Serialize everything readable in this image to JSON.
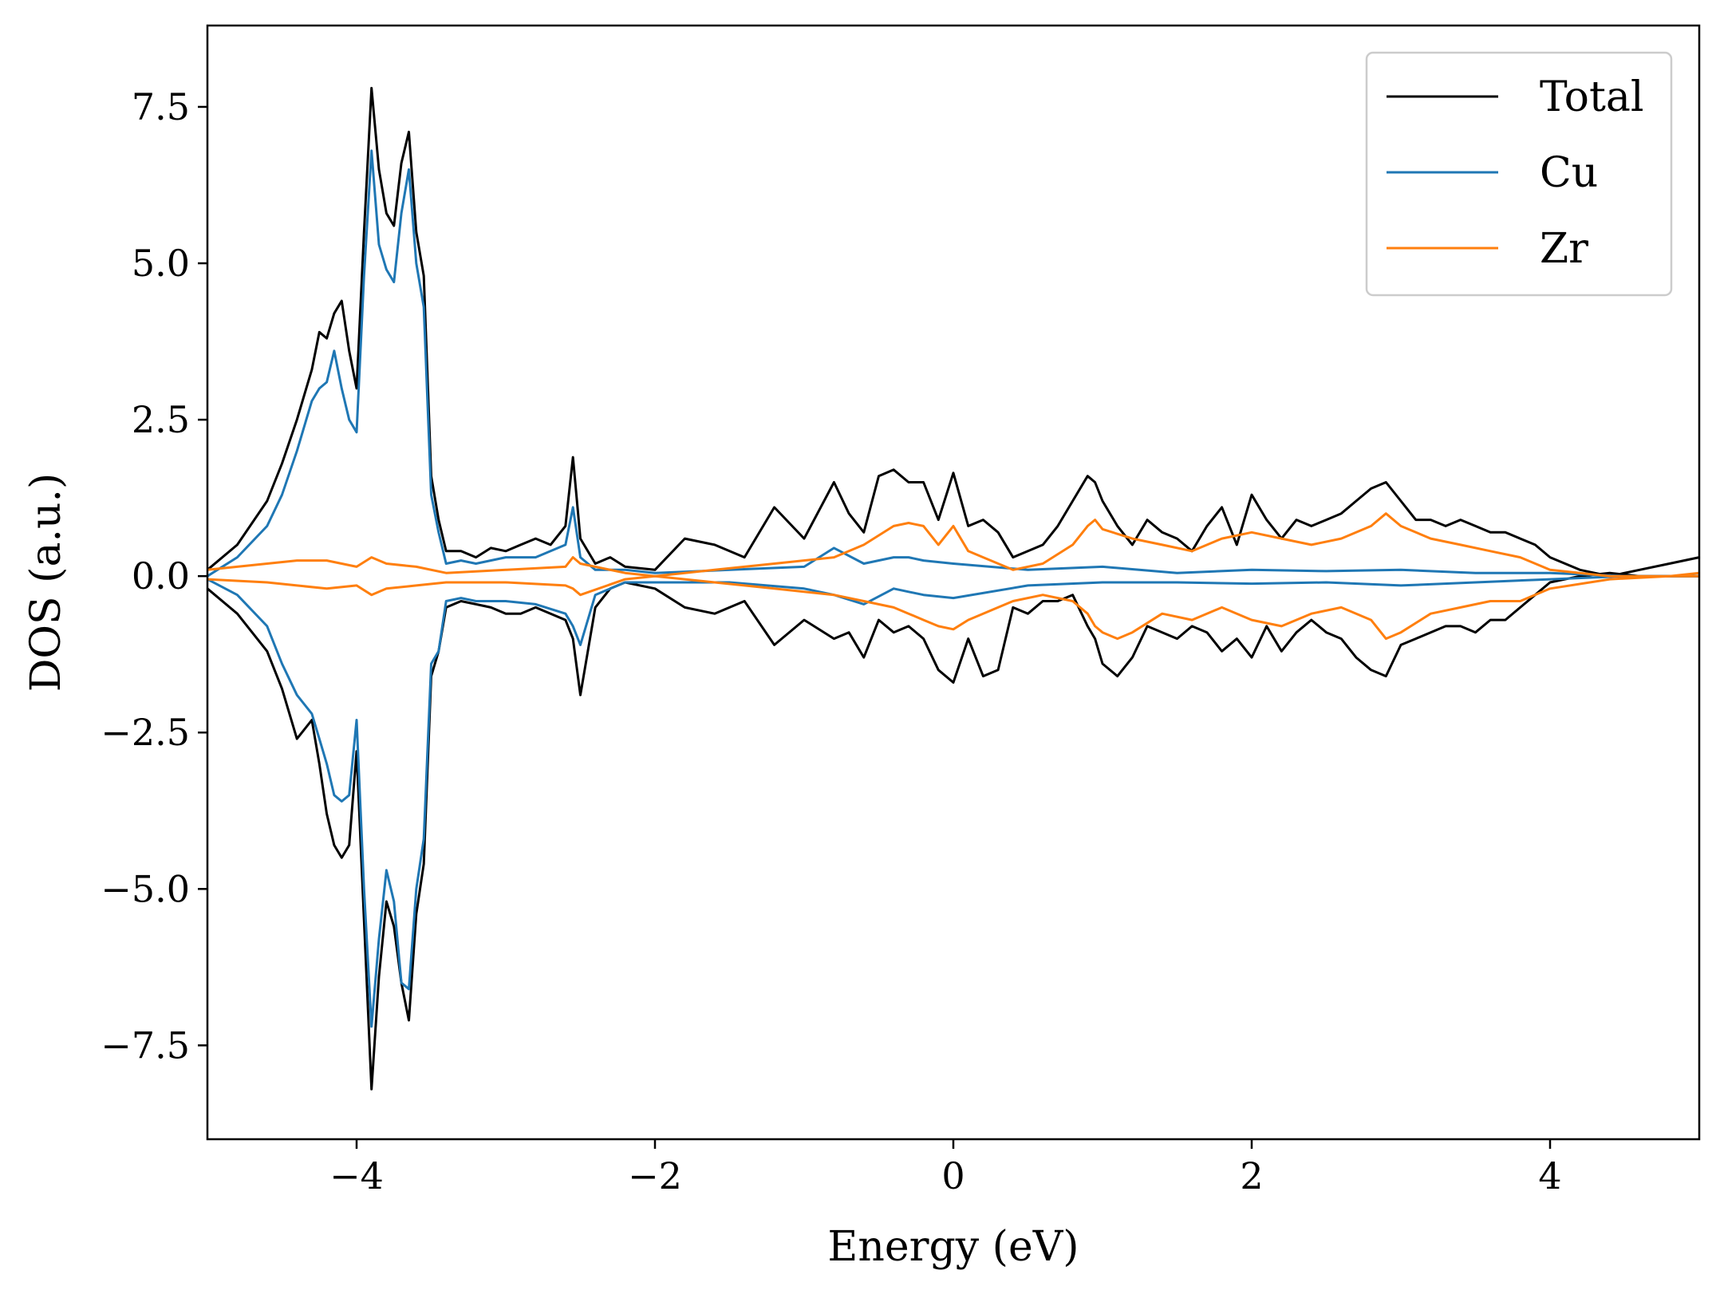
{
  "chart_data": {
    "type": "line",
    "xlabel": "Energy (eV)",
    "ylabel": "DOS (a.u.)",
    "xlim": [
      -5,
      5
    ],
    "ylim": [
      -9.0,
      8.8
    ],
    "xticks": [
      -4,
      -2,
      0,
      2,
      4
    ],
    "xtick_labels": [
      "−4",
      "−2",
      "0",
      "2",
      "4"
    ],
    "yticks": [
      7.5,
      5.0,
      2.5,
      0.0,
      -2.5,
      -5.0,
      -7.5
    ],
    "ytick_labels": [
      "7.5",
      "5.0",
      "2.5",
      "0.0",
      "−2.5",
      "−5.0",
      "−7.5"
    ],
    "grid": false,
    "legend_position": "top-right",
    "series": [
      {
        "name": "Total",
        "color": "#000000",
        "spin_up": {
          "x": [
            -5.0,
            -4.8,
            -4.6,
            -4.5,
            -4.4,
            -4.3,
            -4.25,
            -4.2,
            -4.15,
            -4.1,
            -4.05,
            -4.0,
            -3.95,
            -3.9,
            -3.85,
            -3.8,
            -3.75,
            -3.7,
            -3.65,
            -3.6,
            -3.55,
            -3.5,
            -3.45,
            -3.4,
            -3.3,
            -3.2,
            -3.1,
            -3.0,
            -2.9,
            -2.8,
            -2.7,
            -2.6,
            -2.55,
            -2.5,
            -2.4,
            -2.3,
            -2.2,
            -2.0,
            -1.8,
            -1.6,
            -1.4,
            -1.2,
            -1.0,
            -0.8,
            -0.7,
            -0.6,
            -0.5,
            -0.4,
            -0.3,
            -0.2,
            -0.1,
            0.0,
            0.1,
            0.2,
            0.3,
            0.4,
            0.5,
            0.6,
            0.7,
            0.8,
            0.9,
            0.95,
            1.0,
            1.1,
            1.2,
            1.3,
            1.4,
            1.5,
            1.6,
            1.7,
            1.8,
            1.9,
            2.0,
            2.1,
            2.2,
            2.3,
            2.4,
            2.5,
            2.6,
            2.7,
            2.8,
            2.9,
            3.0,
            3.1,
            3.2,
            3.3,
            3.4,
            3.5,
            3.6,
            3.7,
            3.8,
            3.9,
            4.0,
            4.2,
            4.4,
            4.6,
            4.8,
            5.0
          ],
          "y": [
            0.1,
            0.5,
            1.2,
            1.8,
            2.5,
            3.3,
            3.9,
            3.8,
            4.2,
            4.4,
            3.6,
            3.0,
            5.5,
            7.8,
            6.5,
            5.8,
            5.6,
            6.6,
            7.1,
            5.5,
            4.8,
            1.6,
            0.9,
            0.4,
            0.4,
            0.3,
            0.45,
            0.4,
            0.5,
            0.6,
            0.5,
            0.8,
            1.9,
            0.6,
            0.2,
            0.3,
            0.15,
            0.1,
            0.6,
            0.5,
            0.3,
            1.1,
            0.6,
            1.5,
            1.0,
            0.7,
            1.6,
            1.7,
            1.5,
            1.5,
            0.9,
            1.65,
            0.8,
            0.9,
            0.7,
            0.3,
            0.4,
            0.5,
            0.8,
            1.2,
            1.6,
            1.5,
            1.2,
            0.8,
            0.5,
            0.9,
            0.7,
            0.6,
            0.4,
            0.8,
            1.1,
            0.5,
            1.3,
            0.9,
            0.6,
            0.9,
            0.8,
            0.9,
            1.0,
            1.2,
            1.4,
            1.5,
            1.2,
            0.9,
            0.9,
            0.8,
            0.9,
            0.8,
            0.7,
            0.7,
            0.6,
            0.5,
            0.3,
            0.1,
            0.0,
            0.1,
            0.2,
            0.3
          ]
        },
        "spin_down": {
          "x": [
            -5.0,
            -4.8,
            -4.6,
            -4.5,
            -4.4,
            -4.3,
            -4.25,
            -4.2,
            -4.15,
            -4.1,
            -4.05,
            -4.0,
            -3.95,
            -3.9,
            -3.85,
            -3.8,
            -3.75,
            -3.7,
            -3.65,
            -3.6,
            -3.55,
            -3.5,
            -3.45,
            -3.4,
            -3.3,
            -3.2,
            -3.1,
            -3.0,
            -2.9,
            -2.8,
            -2.7,
            -2.6,
            -2.55,
            -2.5,
            -2.4,
            -2.3,
            -2.2,
            -2.0,
            -1.8,
            -1.6,
            -1.4,
            -1.2,
            -1.0,
            -0.8,
            -0.7,
            -0.6,
            -0.5,
            -0.4,
            -0.3,
            -0.2,
            -0.1,
            0.0,
            0.1,
            0.2,
            0.3,
            0.4,
            0.5,
            0.6,
            0.7,
            0.8,
            0.9,
            0.95,
            1.0,
            1.1,
            1.2,
            1.3,
            1.4,
            1.5,
            1.6,
            1.7,
            1.8,
            1.9,
            2.0,
            2.1,
            2.2,
            2.3,
            2.4,
            2.5,
            2.6,
            2.7,
            2.8,
            2.9,
            3.0,
            3.1,
            3.2,
            3.3,
            3.4,
            3.5,
            3.6,
            3.7,
            3.8,
            3.9,
            4.0,
            4.2,
            4.4,
            4.6,
            4.8,
            5.0
          ],
          "y": [
            -0.2,
            -0.6,
            -1.2,
            -1.8,
            -2.6,
            -2.3,
            -3.0,
            -3.8,
            -4.3,
            -4.5,
            -4.3,
            -2.8,
            -5.5,
            -8.2,
            -6.4,
            -5.2,
            -5.6,
            -6.5,
            -7.1,
            -5.4,
            -4.6,
            -1.6,
            -1.2,
            -0.5,
            -0.4,
            -0.45,
            -0.5,
            -0.6,
            -0.6,
            -0.5,
            -0.6,
            -0.7,
            -1.0,
            -1.9,
            -0.5,
            -0.2,
            -0.1,
            -0.2,
            -0.5,
            -0.6,
            -0.4,
            -1.1,
            -0.7,
            -1.0,
            -0.9,
            -1.3,
            -0.7,
            -0.9,
            -0.8,
            -1.0,
            -1.5,
            -1.7,
            -1.0,
            -1.6,
            -1.5,
            -0.5,
            -0.6,
            -0.4,
            -0.4,
            -0.3,
            -0.8,
            -1.0,
            -1.4,
            -1.6,
            -1.3,
            -0.8,
            -0.9,
            -1.0,
            -0.8,
            -0.9,
            -1.2,
            -1.0,
            -1.3,
            -0.8,
            -1.2,
            -0.9,
            -0.7,
            -0.9,
            -1.0,
            -1.3,
            -1.5,
            -1.6,
            -1.1,
            -1.0,
            -0.9,
            -0.8,
            -0.8,
            -0.9,
            -0.7,
            -0.7,
            -0.5,
            -0.3,
            -0.1,
            0.0,
            0.05,
            0.0,
            0.0,
            0.0
          ]
        }
      },
      {
        "name": "Cu",
        "color": "#1f77b4",
        "spin_up": {
          "x": [
            -5.0,
            -4.8,
            -4.6,
            -4.5,
            -4.4,
            -4.3,
            -4.25,
            -4.2,
            -4.15,
            -4.1,
            -4.05,
            -4.0,
            -3.95,
            -3.9,
            -3.85,
            -3.8,
            -3.75,
            -3.7,
            -3.65,
            -3.6,
            -3.55,
            -3.5,
            -3.45,
            -3.4,
            -3.3,
            -3.2,
            -3.0,
            -2.8,
            -2.6,
            -2.55,
            -2.5,
            -2.4,
            -2.2,
            -2.0,
            -1.5,
            -1.0,
            -0.8,
            -0.6,
            -0.4,
            -0.3,
            -0.2,
            0.0,
            0.5,
            1.0,
            1.5,
            2.0,
            2.5,
            3.0,
            3.5,
            4.0,
            4.5,
            5.0
          ],
          "y": [
            0.0,
            0.3,
            0.8,
            1.3,
            2.0,
            2.8,
            3.0,
            3.1,
            3.6,
            3.0,
            2.5,
            2.3,
            4.8,
            6.8,
            5.3,
            4.9,
            4.7,
            5.8,
            6.5,
            5.0,
            4.3,
            1.3,
            0.7,
            0.2,
            0.25,
            0.2,
            0.3,
            0.3,
            0.5,
            1.1,
            0.3,
            0.1,
            0.1,
            0.05,
            0.1,
            0.15,
            0.45,
            0.2,
            0.3,
            0.3,
            0.25,
            0.2,
            0.1,
            0.15,
            0.05,
            0.1,
            0.08,
            0.1,
            0.05,
            0.05,
            0.0,
            0.0
          ]
        },
        "spin_down": {
          "x": [
            -5.0,
            -4.8,
            -4.6,
            -4.5,
            -4.4,
            -4.3,
            -4.25,
            -4.2,
            -4.15,
            -4.1,
            -4.05,
            -4.0,
            -3.95,
            -3.9,
            -3.85,
            -3.8,
            -3.75,
            -3.7,
            -3.65,
            -3.6,
            -3.55,
            -3.5,
            -3.45,
            -3.4,
            -3.3,
            -3.2,
            -3.0,
            -2.8,
            -2.6,
            -2.55,
            -2.5,
            -2.4,
            -2.2,
            -2.0,
            -1.5,
            -1.0,
            -0.8,
            -0.6,
            -0.4,
            -0.3,
            -0.2,
            0.0,
            0.5,
            1.0,
            1.5,
            2.0,
            2.5,
            3.0,
            3.5,
            4.0,
            4.5,
            5.0
          ],
          "y": [
            -0.05,
            -0.3,
            -0.8,
            -1.4,
            -1.9,
            -2.2,
            -2.6,
            -3.0,
            -3.5,
            -3.6,
            -3.5,
            -2.3,
            -5.0,
            -7.2,
            -5.8,
            -4.7,
            -5.2,
            -6.5,
            -6.6,
            -5.0,
            -4.2,
            -1.4,
            -1.2,
            -0.4,
            -0.35,
            -0.4,
            -0.4,
            -0.45,
            -0.6,
            -0.8,
            -1.1,
            -0.3,
            -0.1,
            -0.1,
            -0.1,
            -0.2,
            -0.3,
            -0.45,
            -0.2,
            -0.25,
            -0.3,
            -0.35,
            -0.15,
            -0.1,
            -0.1,
            -0.12,
            -0.1,
            -0.15,
            -0.1,
            -0.05,
            0.0,
            0.0
          ]
        }
      },
      {
        "name": "Zr",
        "color": "#ff7f0e",
        "spin_up": {
          "x": [
            -5.0,
            -4.6,
            -4.4,
            -4.2,
            -4.0,
            -3.9,
            -3.8,
            -3.6,
            -3.4,
            -3.0,
            -2.6,
            -2.55,
            -2.5,
            -2.2,
            -2.0,
            -1.6,
            -1.2,
            -0.8,
            -0.6,
            -0.4,
            -0.3,
            -0.2,
            -0.1,
            0.0,
            0.1,
            0.2,
            0.4,
            0.6,
            0.8,
            0.9,
            0.95,
            1.0,
            1.2,
            1.4,
            1.6,
            1.8,
            2.0,
            2.2,
            2.4,
            2.6,
            2.8,
            2.9,
            3.0,
            3.2,
            3.4,
            3.6,
            3.8,
            4.0,
            4.4,
            4.8,
            5.0
          ],
          "y": [
            0.1,
            0.2,
            0.25,
            0.25,
            0.15,
            0.3,
            0.2,
            0.15,
            0.05,
            0.1,
            0.15,
            0.3,
            0.2,
            0.05,
            0.0,
            0.1,
            0.2,
            0.3,
            0.5,
            0.8,
            0.85,
            0.8,
            0.5,
            0.8,
            0.4,
            0.3,
            0.1,
            0.2,
            0.5,
            0.8,
            0.9,
            0.75,
            0.6,
            0.5,
            0.4,
            0.6,
            0.7,
            0.6,
            0.5,
            0.6,
            0.8,
            1.0,
            0.8,
            0.6,
            0.5,
            0.4,
            0.3,
            0.1,
            0.0,
            0.0,
            0.05
          ]
        },
        "spin_down": {
          "x": [
            -5.0,
            -4.6,
            -4.4,
            -4.2,
            -4.0,
            -3.9,
            -3.8,
            -3.6,
            -3.4,
            -3.0,
            -2.6,
            -2.55,
            -2.5,
            -2.2,
            -2.0,
            -1.6,
            -1.2,
            -0.8,
            -0.6,
            -0.4,
            -0.3,
            -0.2,
            -0.1,
            0.0,
            0.1,
            0.2,
            0.4,
            0.6,
            0.8,
            0.9,
            0.95,
            1.0,
            1.1,
            1.2,
            1.4,
            1.6,
            1.8,
            2.0,
            2.2,
            2.4,
            2.6,
            2.8,
            2.9,
            3.0,
            3.2,
            3.4,
            3.6,
            3.8,
            4.0,
            4.4,
            4.8,
            5.0
          ],
          "y": [
            -0.05,
            -0.1,
            -0.15,
            -0.2,
            -0.15,
            -0.3,
            -0.2,
            -0.15,
            -0.1,
            -0.1,
            -0.15,
            -0.2,
            -0.3,
            -0.05,
            0.0,
            -0.1,
            -0.2,
            -0.3,
            -0.4,
            -0.5,
            -0.6,
            -0.7,
            -0.8,
            -0.85,
            -0.7,
            -0.6,
            -0.4,
            -0.3,
            -0.4,
            -0.6,
            -0.8,
            -0.9,
            -1.0,
            -0.9,
            -0.6,
            -0.7,
            -0.5,
            -0.7,
            -0.8,
            -0.6,
            -0.5,
            -0.7,
            -1.0,
            -0.9,
            -0.6,
            -0.5,
            -0.4,
            -0.4,
            -0.2,
            -0.05,
            0.0,
            0.0
          ]
        }
      }
    ]
  }
}
